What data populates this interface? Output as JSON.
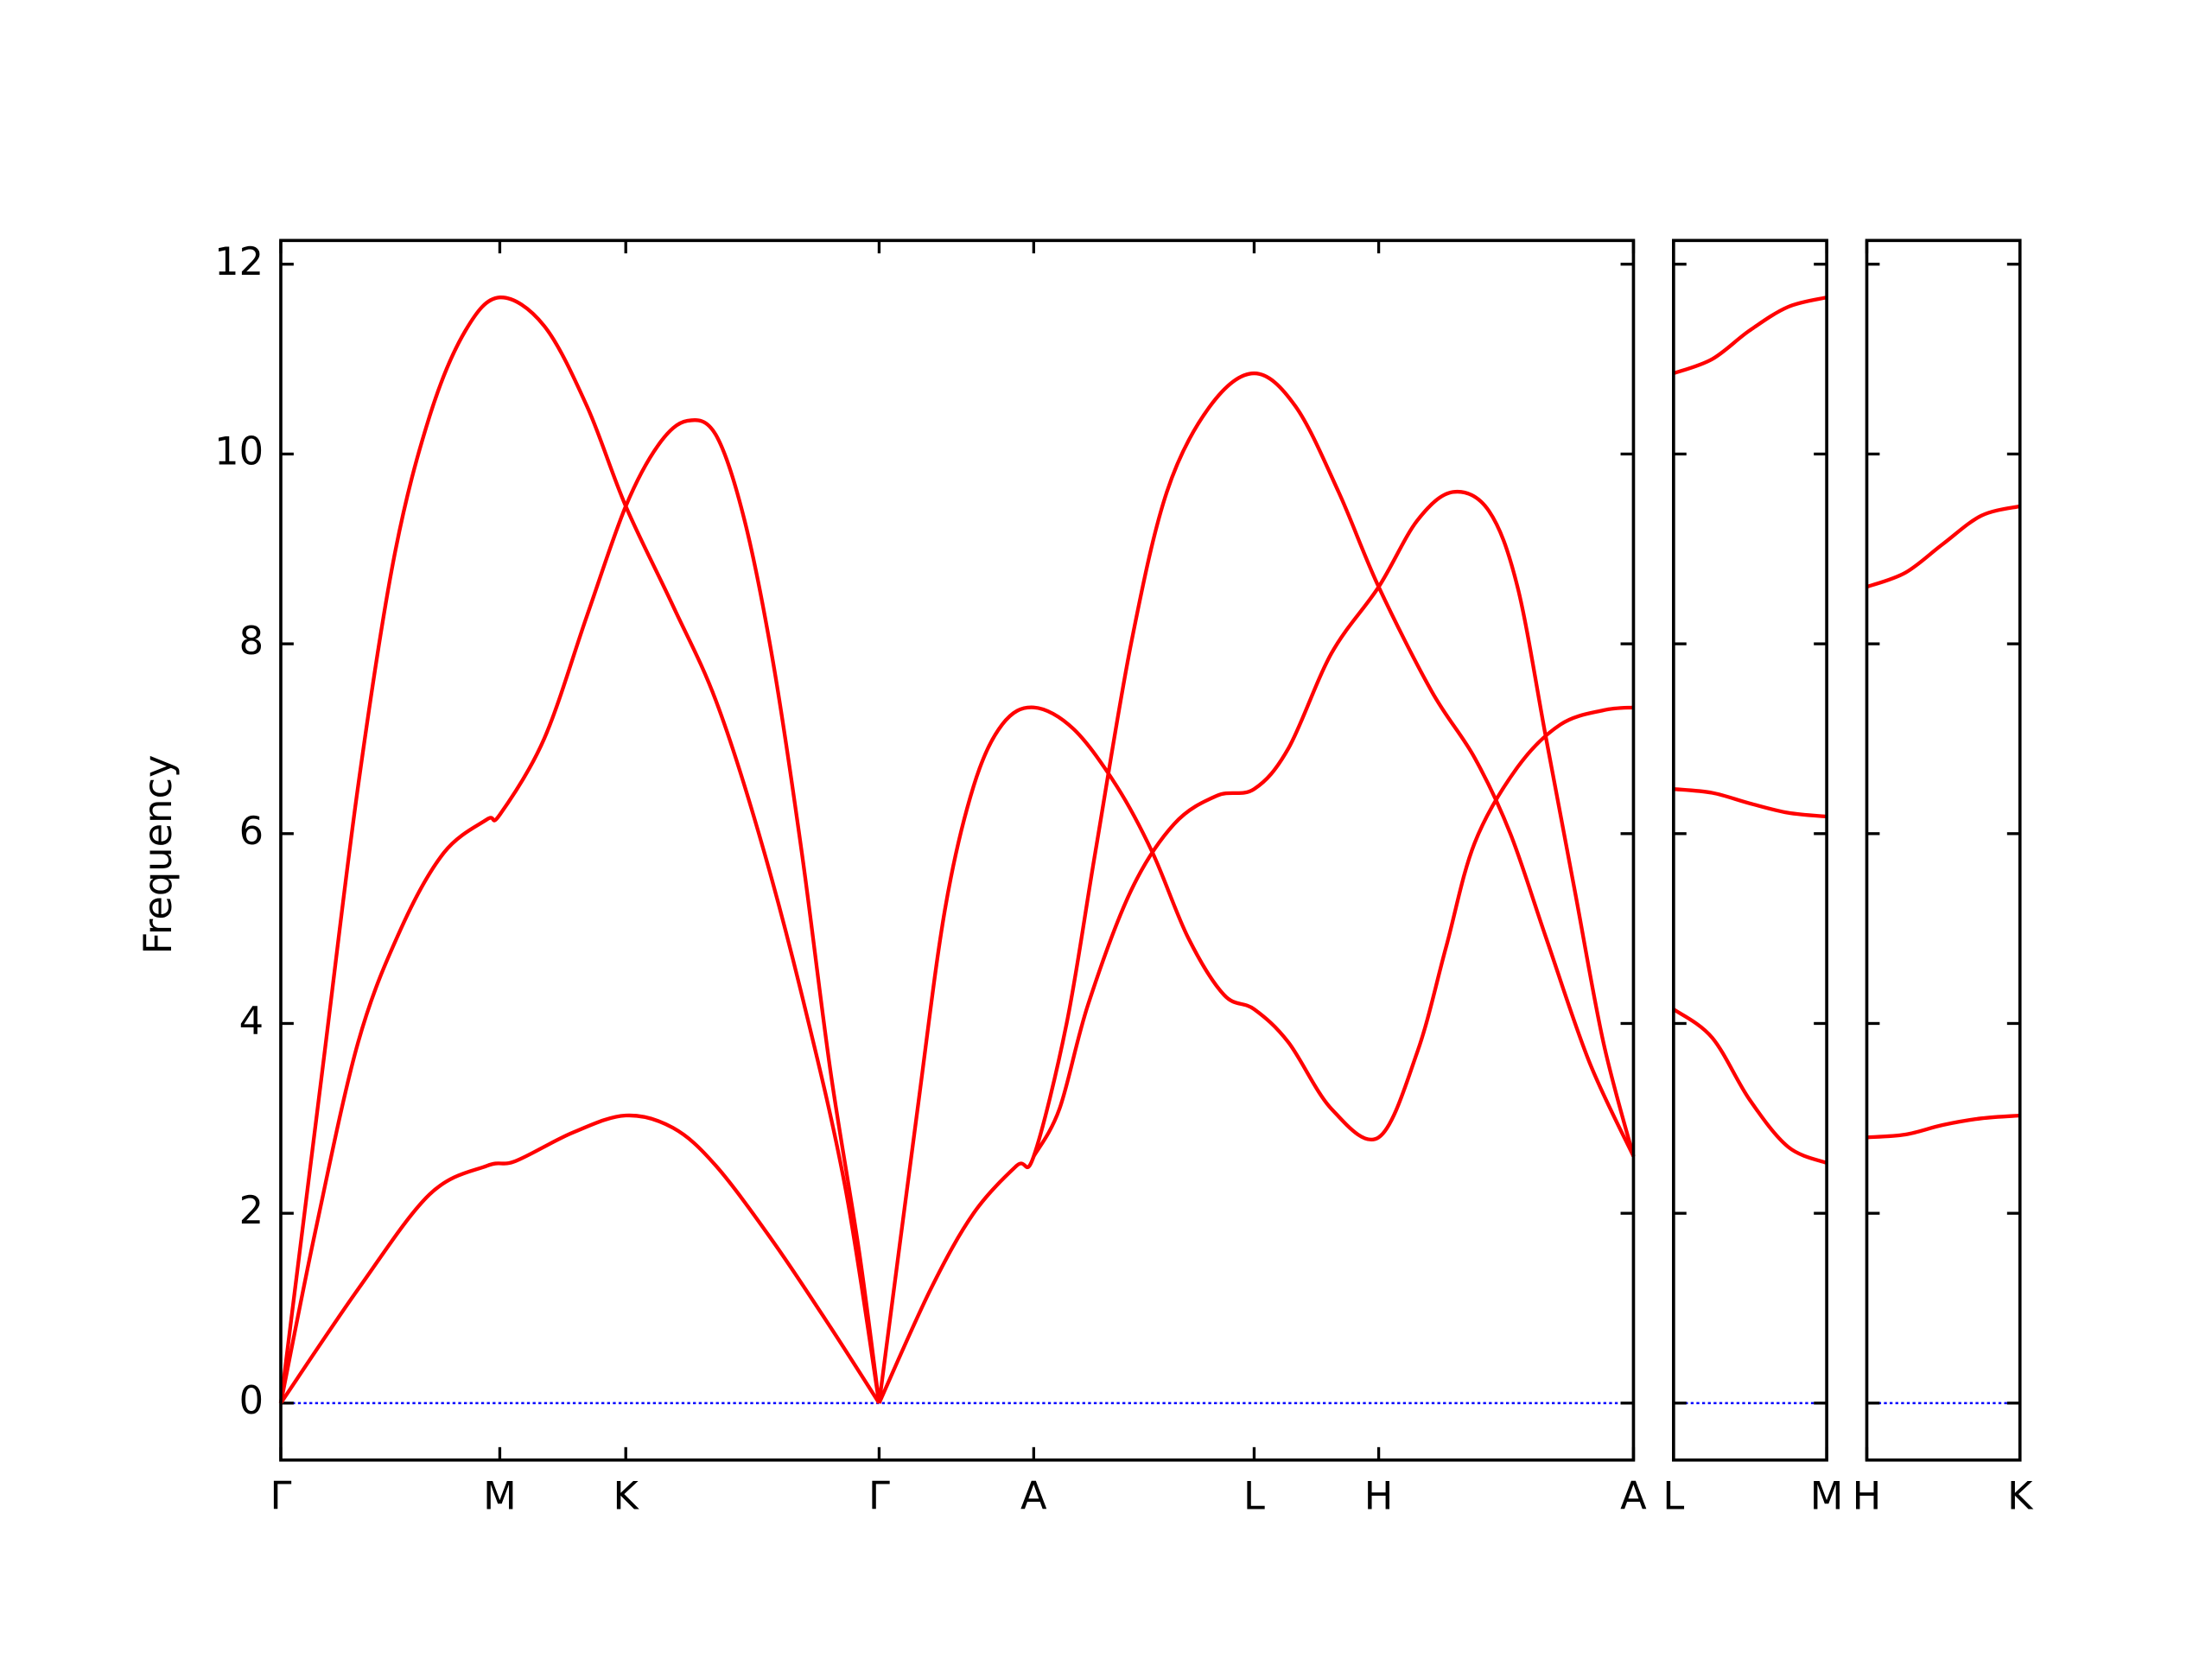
{
  "chart_data": [
    {
      "type": "line",
      "ylabel": "Frequency",
      "xlim": [
        0,
        9.45
      ],
      "ylim": [
        -0.6,
        12.25
      ],
      "yticks": [
        0,
        2,
        4,
        6,
        8,
        10,
        12
      ],
      "ytick_labels": true,
      "zero_line": true,
      "zero_line_color": "#0000ff",
      "xticks": [
        {
          "value": 0,
          "label": "Γ"
        },
        {
          "value": 1.53,
          "label": "M"
        },
        {
          "value": 2.41,
          "label": "K"
        },
        {
          "value": 4.18,
          "label": "Γ"
        },
        {
          "value": 5.26,
          "label": "A"
        },
        {
          "value": 6.8,
          "label": "L"
        },
        {
          "value": 7.67,
          "label": "H"
        },
        {
          "value": 9.45,
          "label": "A"
        }
      ],
      "series": [
        {
          "color": "#ff0000",
          "x": [
            0,
            0.29,
            0.54,
            0.79,
            1.04,
            1.29,
            1.53,
            1.84,
            2.14,
            2.41,
            2.74,
            3.04,
            3.34,
            3.64,
            3.94,
            4.18
          ],
          "values": [
            0,
            3.5,
            6.5,
            8.9,
            10.4,
            11.3,
            11.65,
            11.35,
            10.5,
            9.45,
            8.4,
            7.4,
            6.0,
            4.3,
            2.3,
            0
          ]
        },
        {
          "color": "#ff0000",
          "x": [
            0,
            0.24,
            0.54,
            0.84,
            1.14,
            1.44,
            1.53,
            1.84,
            2.14,
            2.41,
            2.64,
            2.84,
            3.04,
            3.24,
            3.44,
            3.64,
            3.84,
            4.04,
            4.18
          ],
          "values": [
            0,
            1.8,
            3.8,
            5.0,
            5.8,
            6.15,
            6.2,
            7.0,
            8.3,
            9.45,
            10.1,
            10.35,
            10.2,
            9.3,
            7.8,
            5.8,
            3.5,
            1.6,
            0
          ]
        },
        {
          "color": "#ff0000",
          "x": [
            0,
            0.54,
            1.04,
            1.44,
            1.64,
            2.04,
            2.41,
            2.74,
            3.04,
            3.44,
            3.84,
            4.18
          ],
          "values": [
            0,
            1.2,
            2.2,
            2.5,
            2.55,
            2.85,
            3.03,
            2.9,
            2.5,
            1.7,
            0.8,
            0
          ]
        },
        {
          "color": "#ff0000",
          "x": [
            4.18,
            4.44,
            4.64,
            4.84,
            5.04,
            5.26,
            5.54,
            5.84,
            6.09,
            6.34,
            6.59,
            6.8,
            7.04,
            7.34,
            7.67,
            7.94,
            8.14,
            8.34,
            8.64,
            8.94,
            9.24,
            9.45
          ],
          "values": [
            0,
            3.0,
            5.2,
            6.5,
            7.15,
            7.33,
            7.1,
            6.5,
            5.8,
            4.9,
            4.3,
            4.15,
            3.8,
            3.1,
            2.8,
            3.7,
            4.8,
            5.9,
            6.7,
            7.15,
            7.3,
            7.33
          ]
        },
        {
          "color": "#ff0000",
          "x": [
            4.18,
            4.54,
            4.84,
            5.14,
            5.26,
            5.49,
            5.69,
            5.94,
            6.19,
            6.49,
            6.8,
            7.09,
            7.39,
            7.67,
            8.04,
            8.34,
            8.59,
            8.84,
            9.14,
            9.45
          ],
          "values": [
            0,
            1.2,
            2.0,
            2.5,
            2.6,
            4.0,
            5.8,
            8.0,
            9.6,
            10.5,
            10.85,
            10.5,
            9.6,
            8.6,
            7.5,
            6.8,
            6.0,
            4.9,
            3.6,
            2.6
          ]
        },
        {
          "color": "#ff0000",
          "x": [
            5.26,
            5.44,
            5.64,
            5.94,
            6.24,
            6.54,
            6.8,
            7.04,
            7.34,
            7.67,
            7.94,
            8.19,
            8.44,
            8.64,
            8.84,
            9.04,
            9.24,
            9.45
          ],
          "values": [
            2.6,
            3.1,
            4.2,
            5.4,
            6.1,
            6.4,
            6.47,
            6.9,
            7.9,
            8.6,
            9.3,
            9.6,
            9.4,
            8.6,
            7.0,
            5.4,
            3.8,
            2.6
          ]
        }
      ]
    },
    {
      "type": "line",
      "xlim": [
        0,
        1.07
      ],
      "ylim": [
        -0.6,
        12.25
      ],
      "yticks": [
        0,
        2,
        4,
        6,
        8,
        10,
        12
      ],
      "ytick_labels": false,
      "zero_line": true,
      "zero_line_color": "#0000ff",
      "xticks": [
        {
          "value": 0,
          "label": "L"
        },
        {
          "value": 1.07,
          "label": "M"
        }
      ],
      "series": [
        {
          "color": "#ff0000",
          "x": [
            0,
            0.27,
            0.53,
            0.8,
            1.07
          ],
          "values": [
            10.85,
            11.0,
            11.3,
            11.55,
            11.65
          ]
        },
        {
          "color": "#ff0000",
          "x": [
            0,
            0.27,
            0.53,
            0.8,
            1.07
          ],
          "values": [
            6.47,
            6.43,
            6.32,
            6.22,
            6.18
          ]
        },
        {
          "color": "#ff0000",
          "x": [
            0,
            0.27,
            0.53,
            0.8,
            1.07
          ],
          "values": [
            4.15,
            3.85,
            3.2,
            2.7,
            2.53
          ]
        }
      ]
    },
    {
      "type": "line",
      "xlim": [
        0,
        1.07
      ],
      "ylim": [
        -0.6,
        12.25
      ],
      "yticks": [
        0,
        2,
        4,
        6,
        8,
        10,
        12
      ],
      "ytick_labels": false,
      "zero_line": true,
      "zero_line_color": "#0000ff",
      "xticks": [
        {
          "value": 0,
          "label": "H"
        },
        {
          "value": 1.07,
          "label": "K"
        }
      ],
      "series": [
        {
          "color": "#ff0000",
          "x": [
            0,
            0.27,
            0.53,
            0.8,
            1.07
          ],
          "values": [
            8.6,
            8.75,
            9.05,
            9.35,
            9.45
          ]
        },
        {
          "color": "#ff0000",
          "x": [
            0,
            0.27,
            0.53,
            0.8,
            1.07
          ],
          "values": [
            2.8,
            2.83,
            2.93,
            3.0,
            3.03
          ]
        }
      ]
    }
  ]
}
